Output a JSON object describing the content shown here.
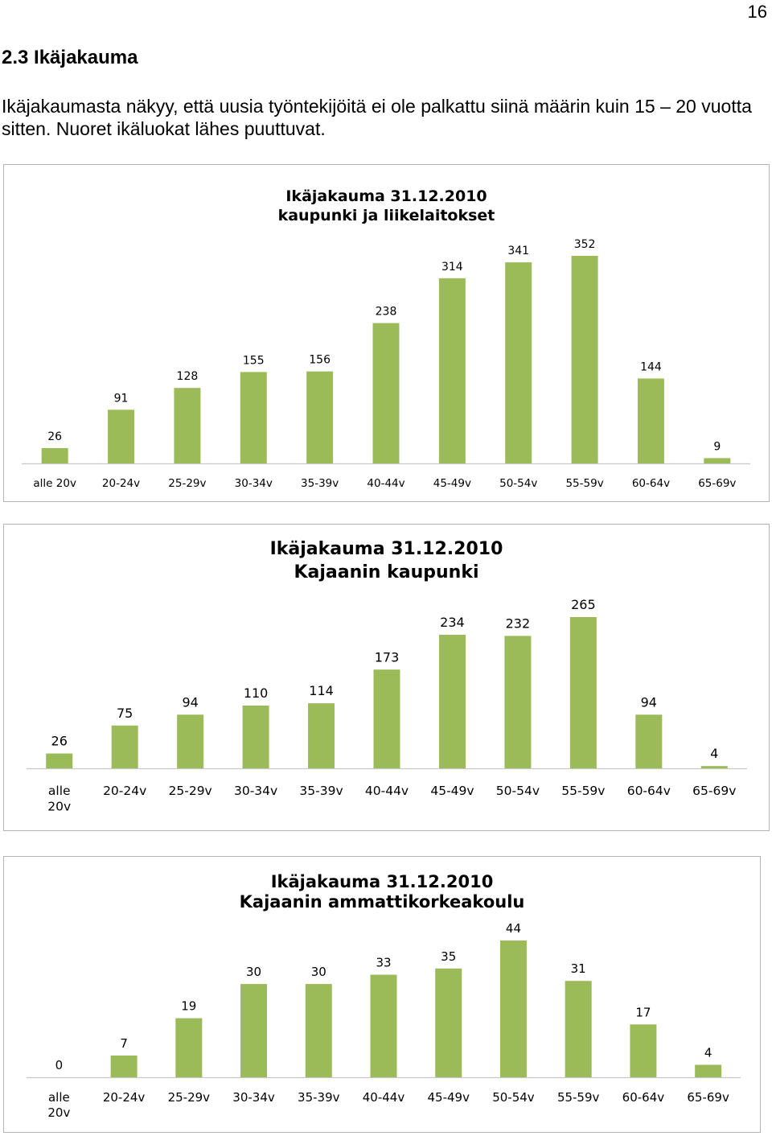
{
  "page": {
    "number": "16",
    "section_title": "2.3 Ikäjakauma",
    "intro_text": "Ikäjakaumasta näkyy, että uusia työntekijöitä ei ole palkattu siinä määrin kuin 15 – 20 vuotta sitten. Nuoret ikäluokat lähes puuttuvat."
  },
  "bar_color": "#9bbb59",
  "chart_data": [
    {
      "type": "bar",
      "title": "Ikäjakauma 31.12.2010",
      "subtitle": "kaupunki ja liikelaitokset",
      "categories": [
        "alle 20v",
        "20-24v",
        "25-29v",
        "30-34v",
        "35-39v",
        "40-44v",
        "45-49v",
        "50-54v",
        "55-59v",
        "60-64v",
        "65-69v"
      ],
      "values": [
        26,
        91,
        128,
        155,
        156,
        238,
        314,
        341,
        352,
        144,
        9
      ],
      "grid": false,
      "legend": "none"
    },
    {
      "type": "bar",
      "title": "Ikäjakauma 31.12.2010",
      "subtitle": "Kajaanin kaupunki",
      "categories": [
        "alle 20v",
        "20-24v",
        "25-29v",
        "30-34v",
        "35-39v",
        "40-44v",
        "45-49v",
        "50-54v",
        "55-59v",
        "60-64v",
        "65-69v"
      ],
      "values": [
        26,
        75,
        94,
        110,
        114,
        173,
        234,
        232,
        265,
        94,
        4
      ],
      "grid": false,
      "legend": "none"
    },
    {
      "type": "bar",
      "title": "Ikäjakauma 31.12.2010",
      "subtitle": "Kajaanin ammattikorkeakoulu",
      "categories": [
        "alle 20v",
        "20-24v",
        "25-29v",
        "30-34v",
        "35-39v",
        "40-44v",
        "45-49v",
        "50-54v",
        "55-59v",
        "60-64v",
        "65-69v"
      ],
      "values": [
        0,
        7,
        19,
        30,
        30,
        33,
        35,
        44,
        31,
        17,
        4
      ],
      "grid": false,
      "legend": "none"
    }
  ]
}
